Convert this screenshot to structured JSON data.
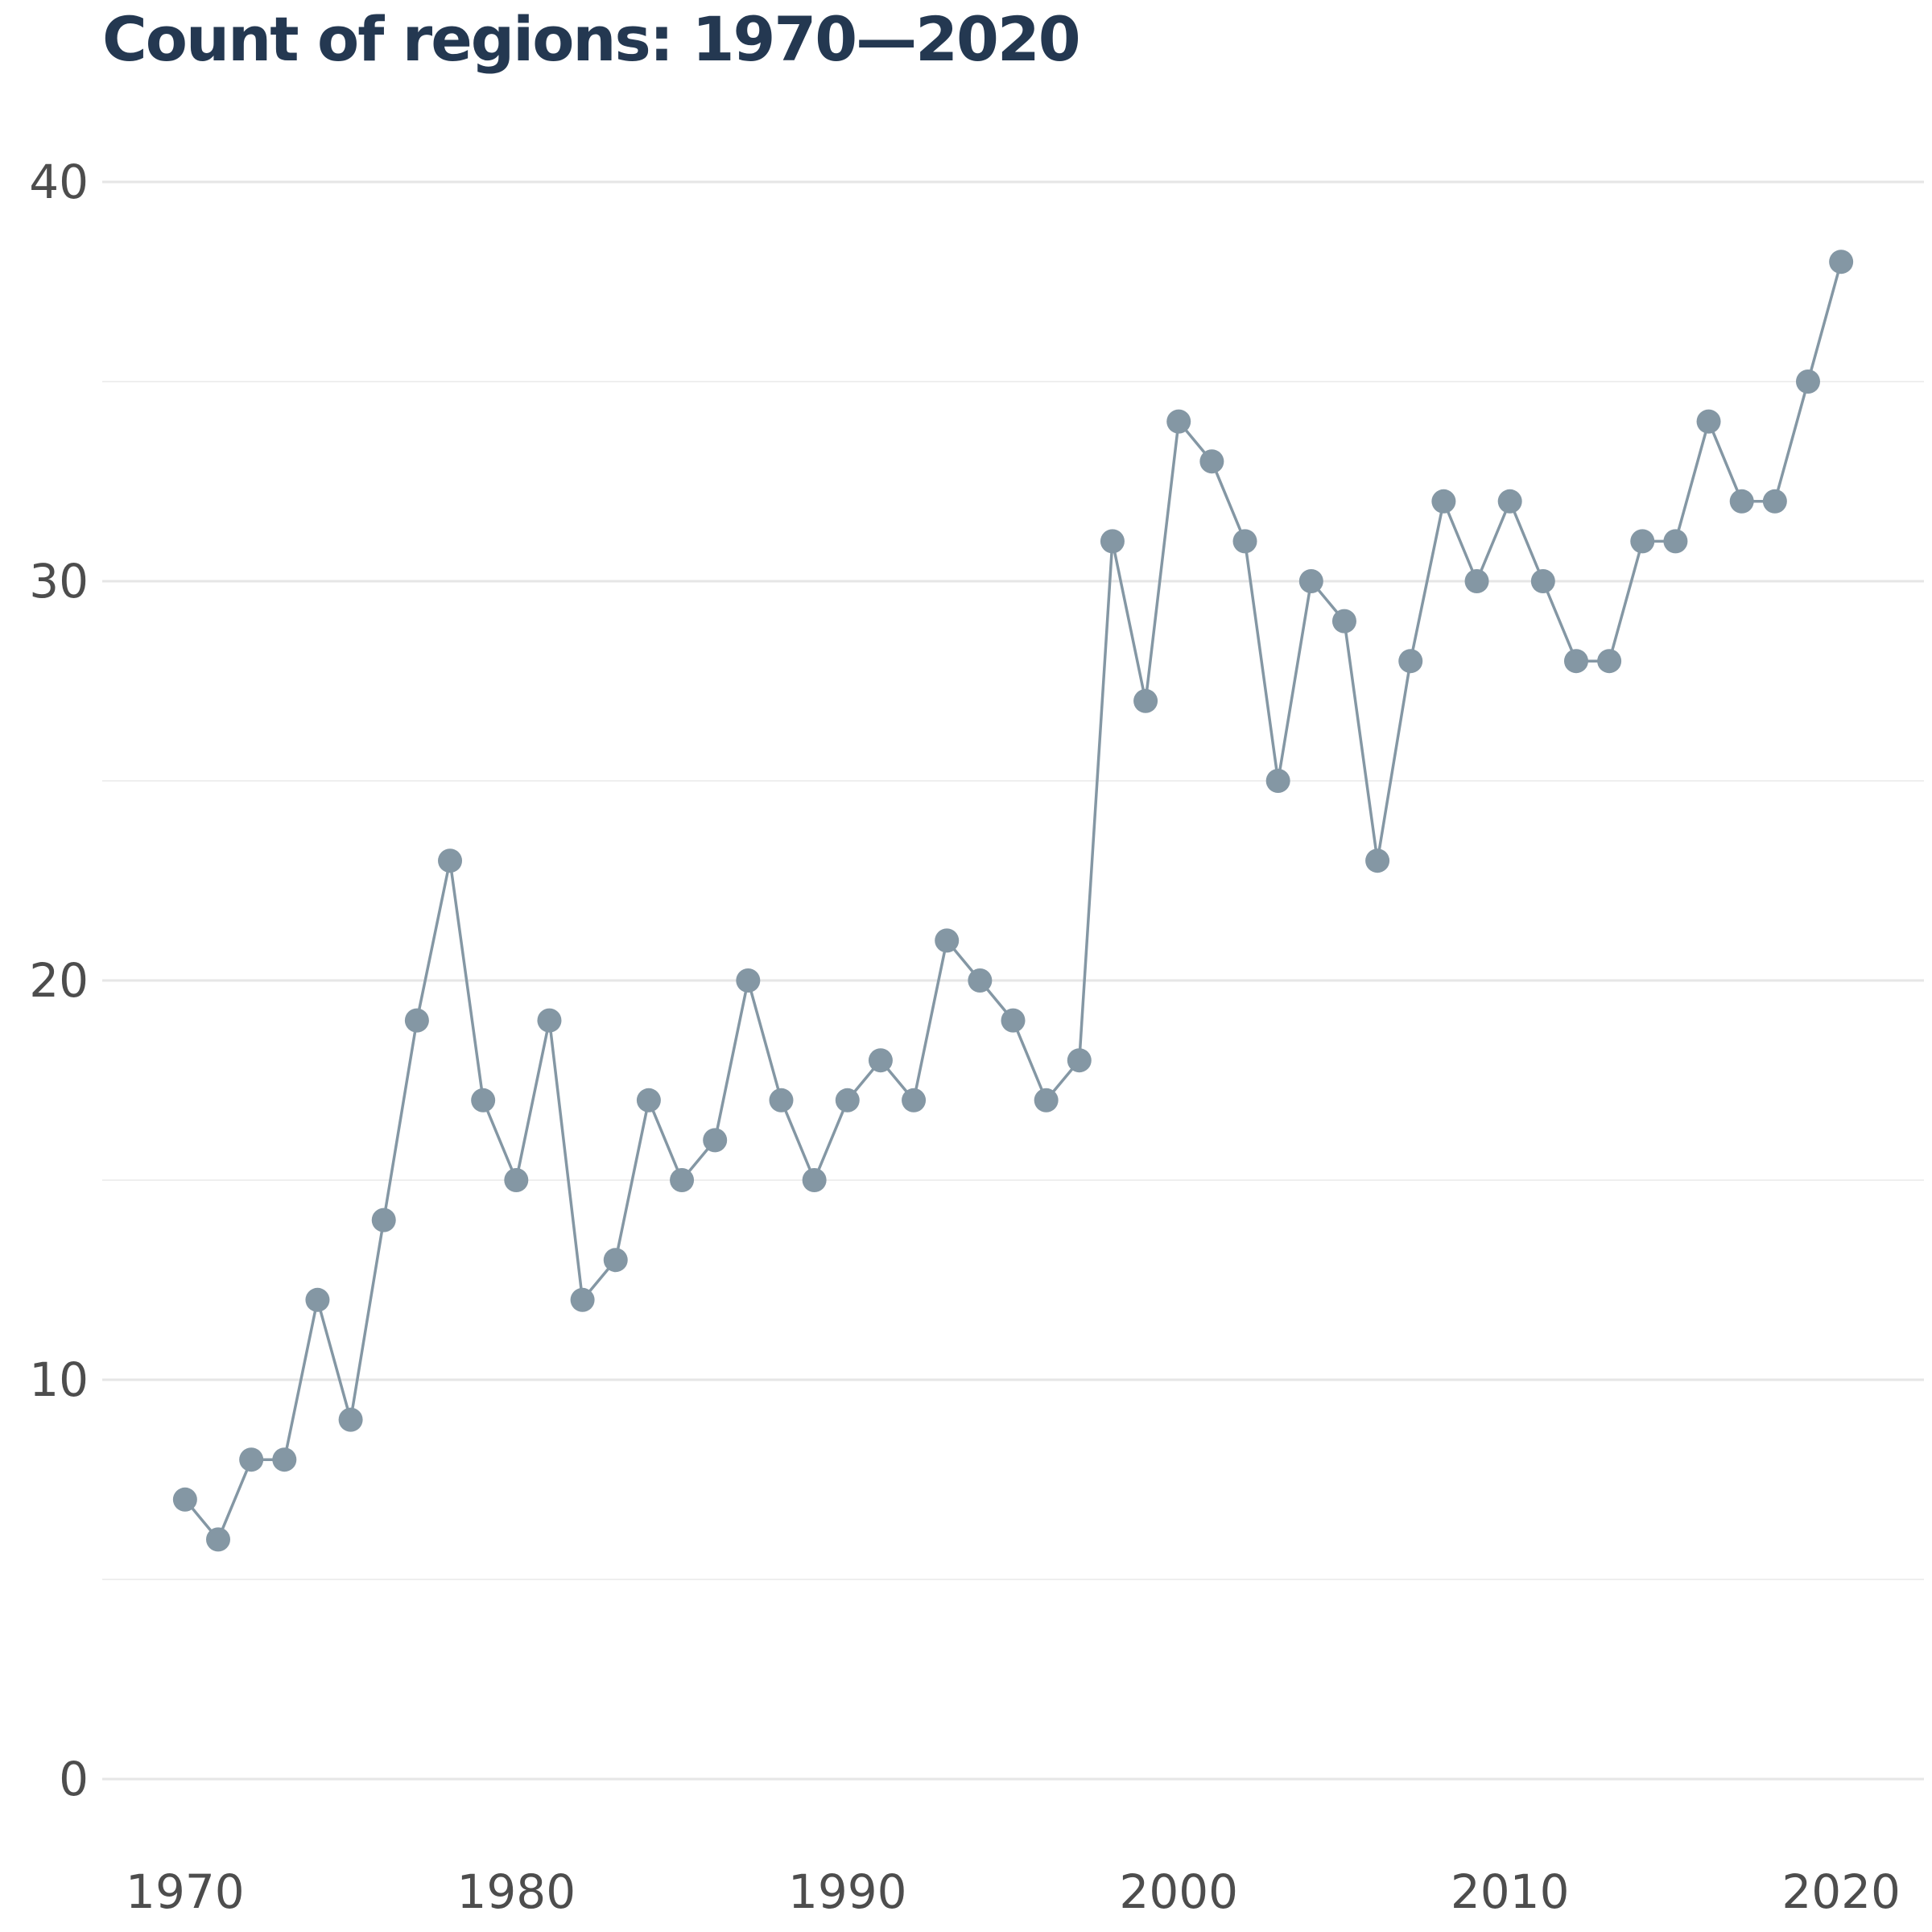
{
  "chart_data": {
    "type": "line",
    "title": "Count of regions: 1970—2020",
    "xlabel": "",
    "ylabel": "",
    "xlim": [
      1967.5,
      2022.5
    ],
    "ylim": [
      0,
      40
    ],
    "grid": true,
    "legend": "none",
    "x_ticks": [
      1970,
      1980,
      1990,
      2000,
      2010,
      2020
    ],
    "y_ticks": [
      0,
      10,
      20,
      30,
      40
    ],
    "x_tick_labels": [
      "1970",
      "1980",
      "1990",
      "2000",
      "2010",
      "2020"
    ],
    "y_tick_labels": [
      "0",
      "10",
      "20",
      "30",
      "40"
    ],
    "y_minor_ticks": [
      5,
      15,
      25,
      35
    ],
    "series": [
      {
        "color": "#8497a4",
        "x": [
          1970,
          1971,
          1972,
          1973,
          1974,
          1975,
          1976,
          1977,
          1978,
          1979,
          1980,
          1981,
          1982,
          1983,
          1984,
          1985,
          1986,
          1987,
          1988,
          1989,
          1990,
          1991,
          1992,
          1993,
          1994,
          1995,
          1996,
          1997,
          1998,
          1999,
          2000,
          2001,
          2002,
          2003,
          2004,
          2005,
          2006,
          2007,
          2008,
          2009,
          2010,
          2011,
          2012,
          2013,
          2014,
          2015,
          2016,
          2017,
          2018,
          2019,
          2020
        ],
        "values": [
          7,
          6,
          8,
          8,
          12,
          9,
          14,
          19,
          23,
          17,
          15,
          19,
          12,
          13,
          17,
          15,
          16,
          20,
          17,
          15,
          17,
          18,
          17,
          21,
          20,
          19,
          17,
          18,
          31,
          27,
          34,
          33,
          31,
          25,
          30,
          29,
          23,
          28,
          32,
          30,
          32,
          30,
          28,
          28,
          31,
          31,
          34,
          32,
          32,
          35,
          38
        ]
      }
    ]
  }
}
